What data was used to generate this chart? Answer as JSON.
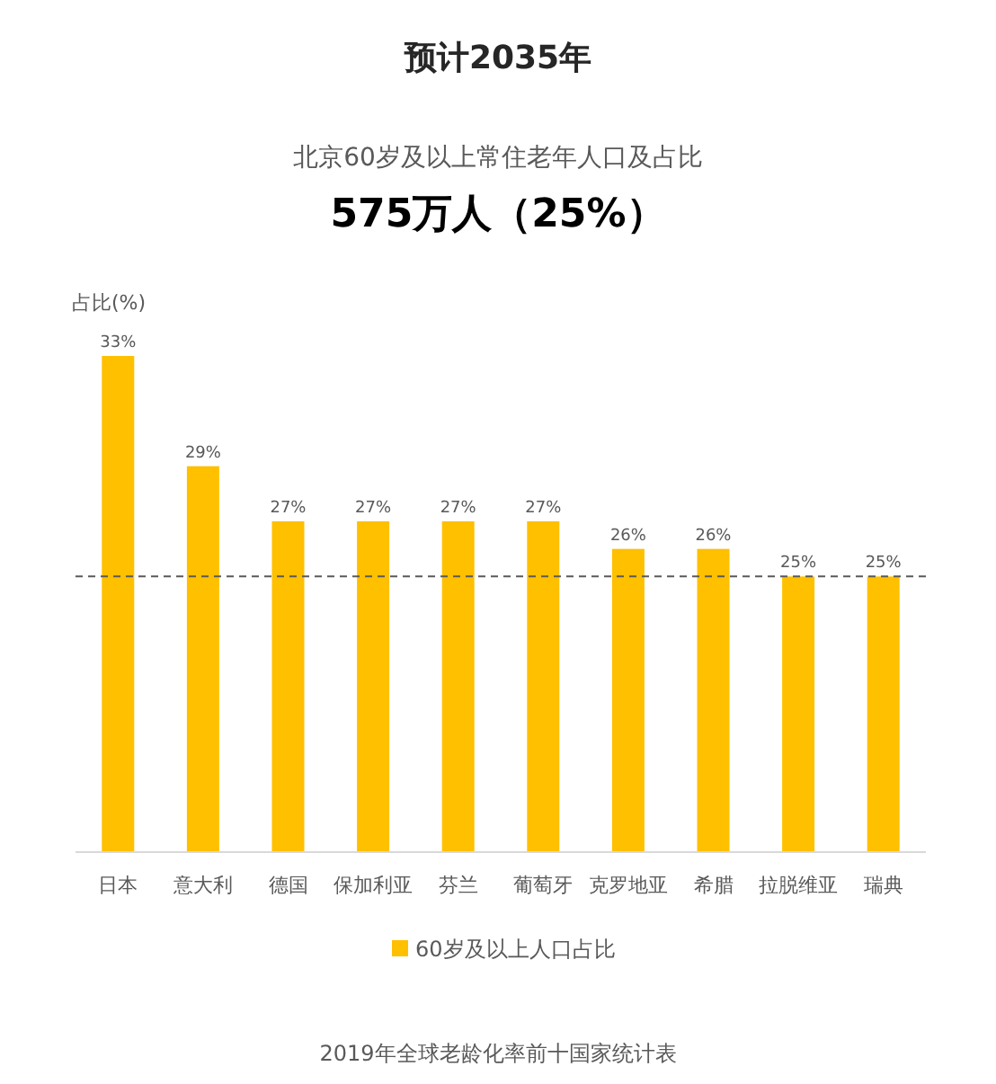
{
  "chart_data": {
    "type": "bar",
    "title": "预计2035年",
    "subtitle": "北京60岁及以上常住老年人口及占比",
    "ylabel": "占比(%)",
    "categories": [
      "日本",
      "意大利",
      "德国",
      "保加利亚",
      "芬兰",
      "葡萄牙",
      "克罗地亚",
      "希腊",
      "拉脱维亚",
      "瑞典"
    ],
    "series": [
      {
        "name": "60岁及以上人口占比",
        "color": "#ffc000",
        "values": [
          33,
          29,
          27,
          27,
          27,
          27,
          26,
          26,
          25,
          25
        ],
        "value_labels": [
          "33%",
          "29%",
          "27%",
          "27%",
          "27%",
          "27%",
          "26%",
          "26%",
          "25%",
          "25%"
        ]
      }
    ],
    "ylim": [
      15,
      33
    ],
    "ref_lines": [
      {
        "axis": "y",
        "value": 25,
        "line_style": "dashed",
        "color": "#595959"
      }
    ],
    "legend": "bottom",
    "annotations": [
      "575万人（25%）",
      "2019年全球老龄化率前十国家统计表"
    ]
  }
}
